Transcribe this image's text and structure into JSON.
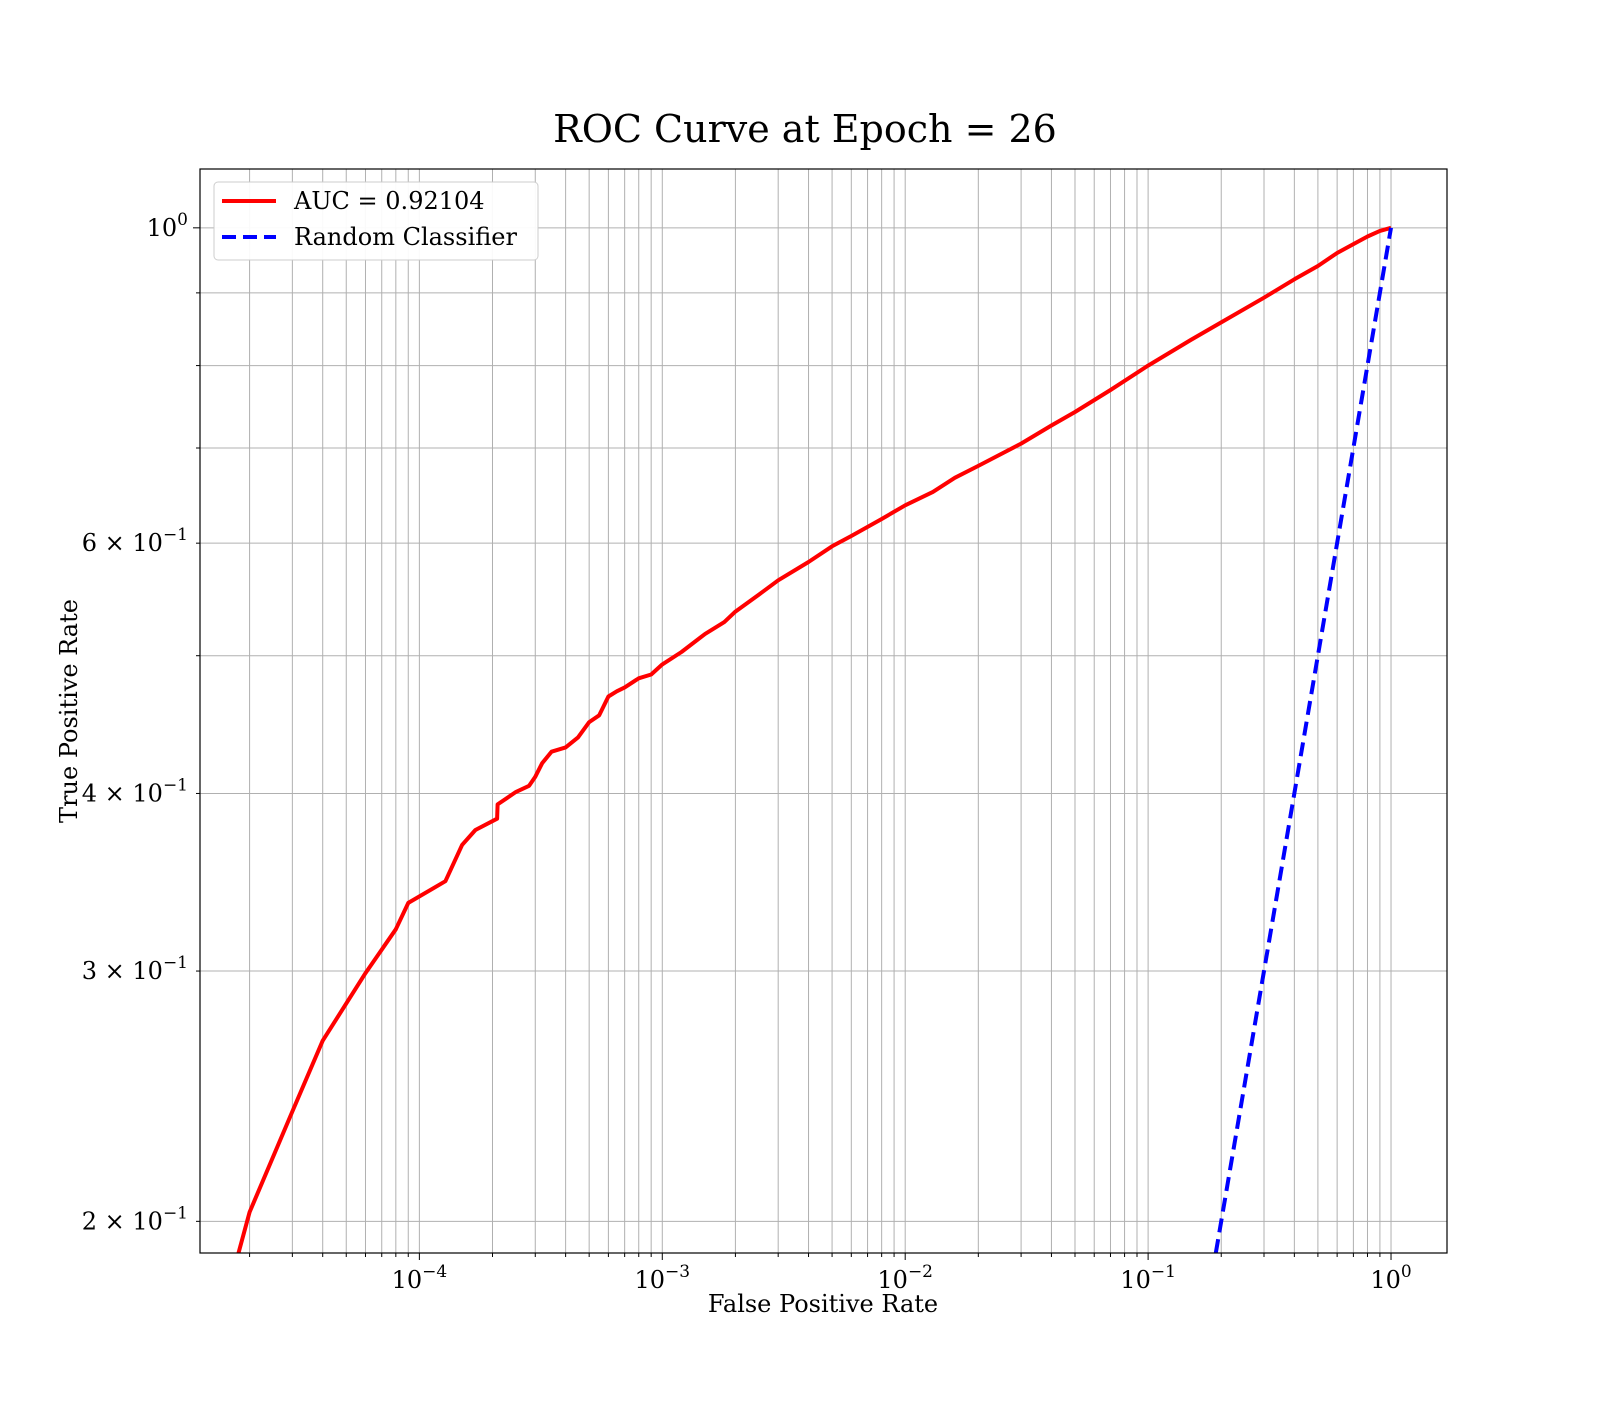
{
  "chart_data": {
    "type": "line",
    "title": "ROC Curve at Epoch = 26",
    "xlabel": "False Positive Rate",
    "ylabel": "True Positive Rate",
    "xscale": "log",
    "yscale": "log",
    "xlim": [
      1.25e-05,
      1.7
    ],
    "ylim": [
      0.19,
      1.1
    ],
    "grid": "both-major-and-minor",
    "legend_position": "upper-left",
    "x_ticks": [
      {
        "value": 0.0001,
        "base": "10",
        "exp": "−4"
      },
      {
        "value": 0.001,
        "base": "10",
        "exp": "−3"
      },
      {
        "value": 0.01,
        "base": "10",
        "exp": "−2"
      },
      {
        "value": 0.1,
        "base": "10",
        "exp": "−1"
      },
      {
        "value": 1,
        "base": "10",
        "exp": "0"
      }
    ],
    "y_ticks": [
      {
        "value": 1.0,
        "mant": "",
        "base": "10",
        "exp": "0"
      },
      {
        "value": 0.6,
        "mant": "6 × ",
        "base": "10",
        "exp": "−1"
      },
      {
        "value": 0.4,
        "mant": "4 × ",
        "base": "10",
        "exp": "−1"
      },
      {
        "value": 0.3,
        "mant": "3 × ",
        "base": "10",
        "exp": "−1"
      },
      {
        "value": 0.2,
        "mant": "2 × ",
        "base": "10",
        "exp": "−1"
      }
    ],
    "series": [
      {
        "name": "AUC = 0.92104",
        "color": "#ff0000",
        "style": "solid",
        "x": [
          1.8e-05,
          2e-05,
          3e-05,
          4e-05,
          6e-05,
          8e-05,
          9e-05,
          0.000128,
          0.00015,
          0.00017,
          0.000209,
          0.00021,
          0.00025,
          0.000283,
          0.0003,
          0.00032,
          0.00035,
          0.0004,
          0.00045,
          0.0005,
          0.00055,
          0.0006,
          0.00065,
          0.0007,
          0.0008,
          0.0009,
          0.001,
          0.0012,
          0.0015,
          0.0018,
          0.002,
          0.0025,
          0.003,
          0.004,
          0.005,
          0.006,
          0.008,
          0.01,
          0.013,
          0.016,
          0.02,
          0.03,
          0.04,
          0.05,
          0.07,
          0.1,
          0.15,
          0.2,
          0.3,
          0.4,
          0.5,
          0.6,
          0.7,
          0.8,
          0.9,
          1.0
        ],
        "y": [
          0.19,
          0.203,
          0.239,
          0.268,
          0.299,
          0.321,
          0.335,
          0.347,
          0.368,
          0.377,
          0.384,
          0.393,
          0.401,
          0.405,
          0.411,
          0.42,
          0.428,
          0.431,
          0.438,
          0.449,
          0.454,
          0.468,
          0.472,
          0.475,
          0.482,
          0.485,
          0.493,
          0.503,
          0.518,
          0.528,
          0.537,
          0.552,
          0.565,
          0.582,
          0.597,
          0.607,
          0.624,
          0.638,
          0.652,
          0.667,
          0.68,
          0.705,
          0.726,
          0.742,
          0.769,
          0.8,
          0.834,
          0.858,
          0.893,
          0.92,
          0.94,
          0.96,
          0.974,
          0.986,
          0.995,
          1.0
        ]
      },
      {
        "name": "Random Classifier",
        "color": "#0000ff",
        "style": "dashed",
        "x": [
          0.19,
          1.0
        ],
        "y": [
          0.19,
          1.0
        ]
      }
    ]
  }
}
